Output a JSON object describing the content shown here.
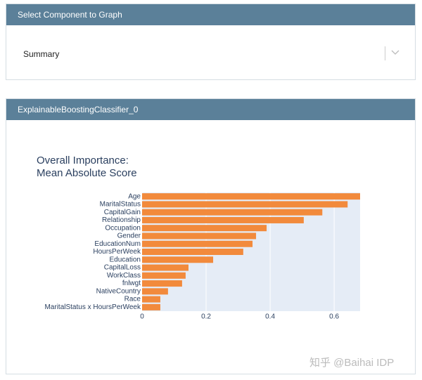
{
  "select_panel": {
    "header": "Select Component to Graph",
    "selected": "Summary"
  },
  "model_panel": {
    "header": "ExplainableBoostingClassifier_0"
  },
  "watermark": "知乎 @Baihai IDP",
  "chart_data": {
    "type": "hbar",
    "title": [
      "Overall Importance:",
      "Mean Absolute Score"
    ],
    "categories": [
      "Age",
      "MaritalStatus",
      "CapitalGain",
      "Relationship",
      "Occupation",
      "Gender",
      "EducationNum",
      "HoursPerWeek",
      "Education",
      "CapitalLoss",
      "WorkClass",
      "fnlwgt",
      "NativeCountry",
      "Race",
      "MaritalStatus x HoursPerWeek"
    ],
    "values": [
      0.681,
      0.642,
      0.563,
      0.505,
      0.389,
      0.356,
      0.345,
      0.316,
      0.222,
      0.145,
      0.136,
      0.125,
      0.081,
      0.057,
      0.057
    ],
    "color": "#f28a3c",
    "xlim": [
      0,
      0.681
    ],
    "xticks": [
      0,
      0.2,
      0.4,
      0.6
    ],
    "grid": true
  }
}
